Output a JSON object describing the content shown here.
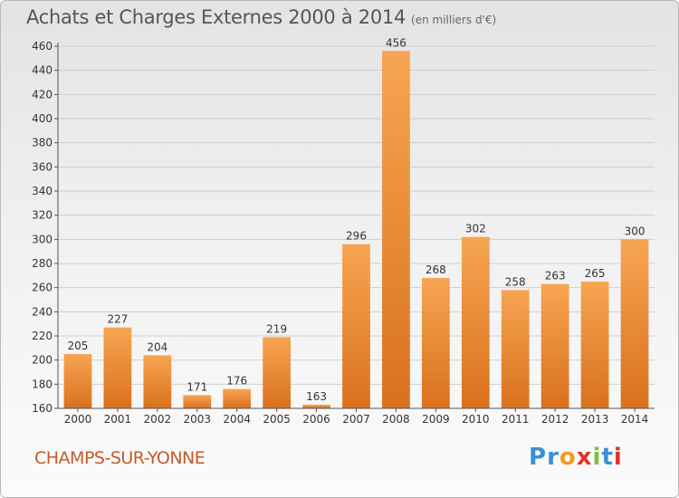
{
  "header": {
    "title": "Achats et Charges Externes 2000 à 2014",
    "unit": "(en milliers d'€)"
  },
  "footer": {
    "commune": "CHAMPS-SUR-YONNE",
    "logo_letters": [
      "P",
      "r",
      "o",
      "x",
      "i",
      "t",
      "i"
    ],
    "logo_colors": [
      "#3b8fd6",
      "#3b8fd6",
      "#f39a1f",
      "#e0342a",
      "#7cc242",
      "#3b8fd6",
      "#e0342a"
    ]
  },
  "chart_data": {
    "type": "bar",
    "title": "Achats et Charges Externes 2000 à 2014",
    "subtitle": "(en milliers d'€)",
    "categories": [
      "2000",
      "2001",
      "2002",
      "2003",
      "2004",
      "2005",
      "2006",
      "2007",
      "2008",
      "2009",
      "2010",
      "2011",
      "2012",
      "2013",
      "2014"
    ],
    "values": [
      205,
      227,
      204,
      171,
      176,
      219,
      163,
      296,
      456,
      268,
      302,
      258,
      263,
      265,
      300
    ],
    "ylim": [
      160,
      460
    ],
    "yticks": [
      160,
      180,
      200,
      220,
      240,
      260,
      280,
      300,
      320,
      340,
      360,
      380,
      400,
      420,
      440,
      460
    ],
    "grid": true,
    "colors": {
      "bar_light": "#f7a552",
      "bar_dark": "#d9711e",
      "grid": "#cfcfcf",
      "axis": "#555555"
    }
  }
}
